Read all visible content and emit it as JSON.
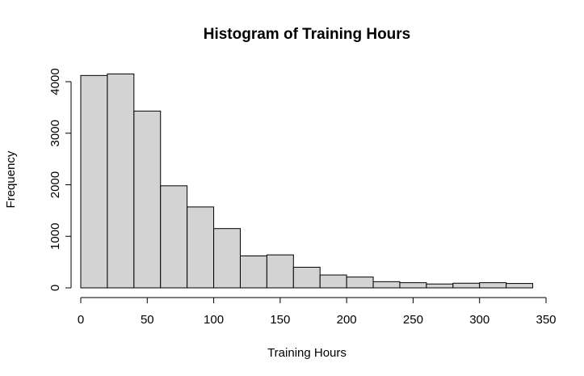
{
  "chart_data": {
    "type": "bar",
    "title": "Histogram of Training Hours",
    "xlabel": "Training Hours",
    "ylabel": "Frequency",
    "bin_edges": [
      0,
      20,
      40,
      60,
      80,
      100,
      120,
      140,
      160,
      180,
      200,
      220,
      240,
      260,
      280,
      300,
      320,
      340
    ],
    "values": [
      4120,
      4150,
      3430,
      1980,
      1570,
      1150,
      620,
      640,
      400,
      250,
      210,
      120,
      100,
      75,
      90,
      100,
      85
    ],
    "xlim": [
      0,
      350
    ],
    "ylim": [
      0,
      4150
    ],
    "xticks": [
      0,
      50,
      100,
      150,
      200,
      250,
      300,
      350
    ],
    "xtick_labels": [
      "0",
      "50",
      "100",
      "150",
      "200",
      "250",
      "300",
      "350"
    ],
    "yticks": [
      0,
      1000,
      2000,
      3000,
      4000
    ],
    "ytick_labels": [
      "0",
      "1000",
      "2000",
      "3000",
      "4000"
    ],
    "grid": false,
    "colors": {
      "bar_fill": "#d3d3d3",
      "bar_stroke": "#000000"
    }
  }
}
